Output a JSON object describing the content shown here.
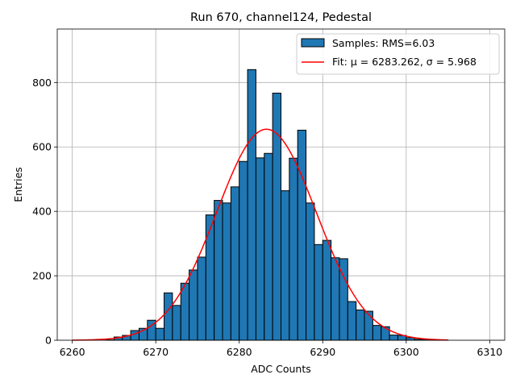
{
  "chart_data": {
    "type": "bar",
    "title": "Run 670, channel124, Pedestal",
    "xlabel": "ADC Counts",
    "ylabel": "Entries",
    "xlim": [
      6258.2,
      6311.8
    ],
    "ylim": [
      0,
      966
    ],
    "xticks": [
      6260,
      6270,
      6280,
      6290,
      6300,
      6310
    ],
    "yticks": [
      0,
      200,
      400,
      600,
      800
    ],
    "grid": true,
    "legend_position": "top-right",
    "legend": [
      {
        "label": "Samples: RMS=6.03",
        "kind": "patch",
        "color": "#1f77b4"
      },
      {
        "label": "Fit: μ = 6283.262, σ = 5.968",
        "kind": "line",
        "color": "#ff0000"
      }
    ],
    "histogram": {
      "bin_edges_start": 6260,
      "bin_width": 1,
      "color": "#1f77b4",
      "values": [
        0,
        0,
        0,
        0,
        1,
        10,
        15,
        30,
        37,
        62,
        37,
        147,
        108,
        177,
        218,
        258,
        389,
        434,
        426,
        476,
        555,
        840,
        566,
        580,
        767,
        464,
        565,
        652,
        426,
        297,
        310,
        256,
        253,
        120,
        94,
        90,
        46,
        42,
        16,
        15,
        8,
        3,
        1,
        1,
        1,
        0,
        0,
        0,
        0,
        0
      ]
    },
    "fit": {
      "mu": 6283.262,
      "sigma": 5.968,
      "amplitude": 655,
      "x_range": [
        6260,
        6305
      ],
      "color": "#ff0000"
    }
  }
}
